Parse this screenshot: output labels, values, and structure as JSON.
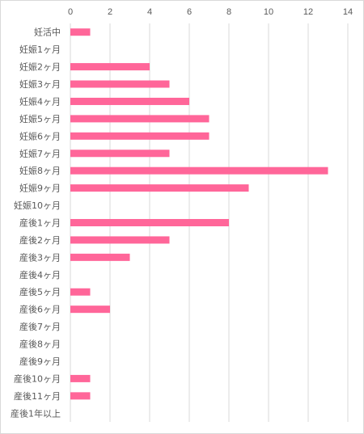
{
  "chart_data": {
    "type": "bar",
    "orientation": "horizontal",
    "title": "",
    "xlabel": "",
    "ylabel": "",
    "xlim": [
      0,
      14
    ],
    "x_ticks": [
      0,
      2,
      4,
      6,
      8,
      10,
      12,
      14
    ],
    "x_axis_position": "top",
    "grid": true,
    "legend": "none",
    "bar_color": "#ff6699",
    "categories": [
      "妊活中",
      "妊娠1ヶ月",
      "妊娠2ヶ月",
      "妊娠3ヶ月",
      "妊娠4ヶ月",
      "妊娠5ヶ月",
      "妊娠6ヶ月",
      "妊娠7ヶ月",
      "妊娠8ヶ月",
      "妊娠9ヶ月",
      "妊娠10ヶ月",
      "産後1ヶ月",
      "産後2ヶ月",
      "産後3ヶ月",
      "産後4ヶ月",
      "産後5ヶ月",
      "産後6ヶ月",
      "産後7ヶ月",
      "産後8ヶ月",
      "産後9ヶ月",
      "産後10ヶ月",
      "産後11ヶ月",
      "産後1年以上"
    ],
    "values": [
      1,
      0,
      4,
      5,
      6,
      7,
      7,
      5,
      13,
      9,
      0,
      8,
      5,
      3,
      0,
      1,
      2,
      0,
      0,
      0,
      1,
      1,
      0
    ]
  }
}
